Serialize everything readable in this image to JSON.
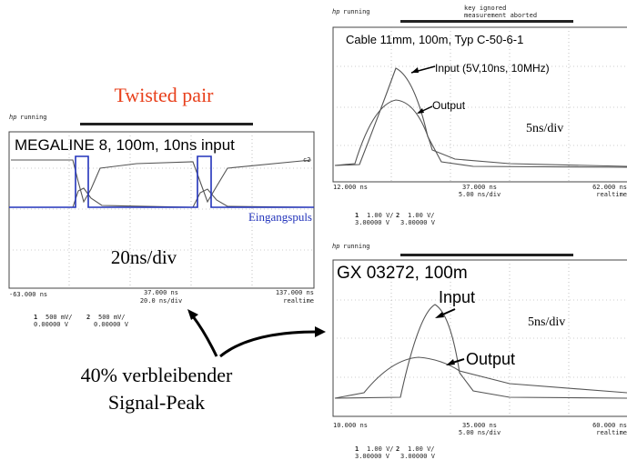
{
  "title": "Twisted pair",
  "callout": [
    "40% verbleibender",
    "Signal-Peak"
  ],
  "panels": [
    {
      "logo": "hp",
      "status": "running",
      "label": "MEGALINE 8, 100m, 10ns input",
      "trace_tag": "c2",
      "annotations": [
        "Eingangspuls",
        "20ns/div"
      ],
      "axis": {
        "left": "-63.000 ns",
        "center": "37.000 ns",
        "per_div": "20.0 ns/div",
        "right": "137.000 ns",
        "mode": "realtime"
      },
      "channels": [
        {
          "id": "1",
          "scale": "500  mV/",
          "offset": "0.00000  V"
        },
        {
          "id": "2",
          "scale": "500  mV/",
          "offset": "0.00000  V"
        }
      ]
    },
    {
      "logo": "hp",
      "status": "running",
      "header": [
        "key ignored",
        "measurement aborted"
      ],
      "label": "Cable 11mm, 100m, Typ C-50-6-1",
      "annotations": [
        "Input (5V,10ns, 10MHz)",
        "Output",
        "5ns/div"
      ],
      "axis": {
        "left": "12.000 ns",
        "center": "37.000 ns",
        "per_div": "5.00 ns/div",
        "right": "62.000 ns",
        "mode": "realtime"
      },
      "channels": [
        {
          "id": "1",
          "scale": "1.00  V/",
          "offset": "3.00000  V"
        },
        {
          "id": "2",
          "scale": "1.00  V/",
          "offset": "3.00000  V"
        }
      ]
    },
    {
      "logo": "hp",
      "status": "running",
      "label": "GX 03272, 100m",
      "annotations": [
        "Input",
        "Output",
        "5ns/div"
      ],
      "axis": {
        "left": "10.000 ns",
        "center": "35.000 ns",
        "per_div": "5.00 ns/div",
        "right": "60.000 ns",
        "mode": "realtime"
      },
      "channels": [
        {
          "id": "1",
          "scale": "1.00  V/",
          "offset": "3.00000  V"
        },
        {
          "id": "2",
          "scale": "1.00  V/",
          "offset": "3.00000  V"
        }
      ]
    }
  ]
}
